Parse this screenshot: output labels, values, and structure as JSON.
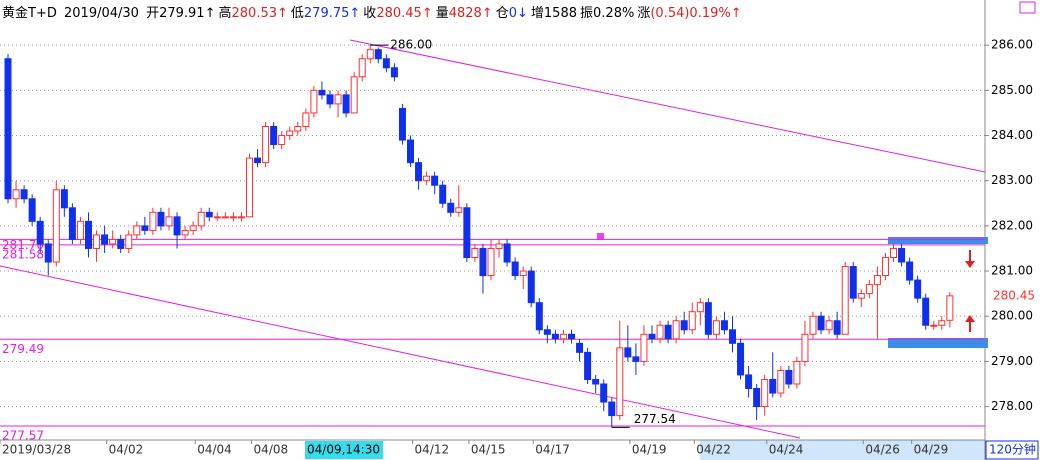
{
  "header": {
    "symbol": "黄金T+D",
    "date": "2019/04/30",
    "fields": [
      {
        "label": "开",
        "value": "279.91↑",
        "color": "#000000"
      },
      {
        "label": "高",
        "value": "280.53↑",
        "color": "#e02020"
      },
      {
        "label": "低",
        "value": "279.75↑",
        "color": "#1030e0"
      },
      {
        "label": "收",
        "value": "280.45↑",
        "color": "#e02020"
      },
      {
        "label": "量",
        "value": "4828↑",
        "color": "#e02020"
      },
      {
        "label": "仓",
        "value": "0↓",
        "color": "#1030e0"
      },
      {
        "label": "增",
        "value": "1588",
        "color": "#000000"
      },
      {
        "label": "振",
        "value": "0.28%",
        "color": "#000000"
      },
      {
        "label": "涨",
        "value": "(0.54)0.19%↑",
        "color": "#e02020"
      }
    ]
  },
  "period_label": "120分钟",
  "cursor_label": "04/09,14:30",
  "chart_data": {
    "type": "candlestick",
    "up_color": "#ff3030",
    "down_color": "#1030f0",
    "ylim": [
      277.26,
      287.0
    ],
    "yticks": [
      {
        "value": 278,
        "label": "278.00"
      },
      {
        "value": 279,
        "label": "279.00"
      },
      {
        "value": 280,
        "label": "280.00"
      },
      {
        "value": 281,
        "label": "281.00"
      },
      {
        "value": 282,
        "label": "282.00"
      },
      {
        "value": 283,
        "label": "283.00"
      },
      {
        "value": 284,
        "label": "284.00"
      },
      {
        "value": 285,
        "label": "285.00"
      },
      {
        "value": 286,
        "label": "286.00"
      }
    ],
    "grid": true,
    "levels": [
      {
        "value": 281.7,
        "label": "281.70"
      },
      281.58,
      279.49,
      277.57
    ],
    "level_color": "#e020e0",
    "max_label": {
      "value": 286,
      "label": "286.00"
    },
    "min_label": 277.54,
    "last_price": 280.45,
    "categories": [
      "2019/03/28",
      null,
      null,
      null,
      null,
      null,
      null,
      null,
      null,
      null,
      null,
      null,
      null,
      "04/02",
      null,
      null,
      null,
      null,
      null,
      null,
      null,
      null,
      null,
      null,
      "04/04",
      null,
      null,
      null,
      null,
      null,
      null,
      "04/08",
      null,
      null,
      null,
      null,
      null,
      null,
      null,
      null,
      null,
      null,
      null,
      null,
      null,
      null,
      null,
      null,
      null,
      null,
      null,
      "04/12",
      null,
      null,
      null,
      null,
      null,
      null,
      "04/15",
      null,
      null,
      null,
      null,
      null,
      null,
      null,
      "04/17",
      null,
      null,
      null,
      null,
      null,
      null,
      null,
      null,
      null,
      null,
      null,
      "04/19",
      null,
      null,
      null,
      null,
      null,
      null,
      null,
      "04/22",
      null,
      null,
      null,
      null,
      null,
      null,
      null,
      null,
      "04/24",
      null,
      null,
      null,
      null,
      null,
      null,
      null,
      null,
      null,
      null,
      null,
      "04/26",
      null,
      null,
      null,
      null,
      null,
      "04/29",
      null,
      null,
      null,
      null
    ],
    "candles": [
      [
        285.7,
        285.8,
        282.5,
        282.6
      ],
      [
        282.6,
        283.0,
        282.4,
        282.8
      ],
      [
        282.8,
        282.9,
        282.5,
        282.6
      ],
      [
        282.6,
        282.7,
        282.0,
        282.1
      ],
      [
        282.1,
        282.2,
        281.4,
        281.6
      ],
      [
        281.6,
        281.7,
        280.9,
        281.2
      ],
      [
        281.2,
        283.0,
        281.1,
        282.8
      ],
      [
        282.8,
        282.9,
        282.2,
        282.4
      ],
      [
        282.4,
        282.5,
        281.6,
        281.7
      ],
      [
        281.7,
        282.2,
        281.6,
        282.1
      ],
      [
        282.1,
        282.3,
        281.3,
        281.5
      ],
      [
        281.5,
        281.9,
        281.2,
        281.8
      ],
      [
        281.8,
        282.0,
        281.4,
        281.6
      ],
      [
        281.6,
        281.9,
        281.5,
        281.7
      ],
      [
        281.7,
        281.8,
        281.4,
        281.5
      ],
      [
        281.5,
        281.9,
        281.4,
        281.8
      ],
      [
        281.8,
        282.1,
        281.7,
        282.0
      ],
      [
        282.0,
        282.2,
        281.8,
        281.9
      ],
      [
        281.9,
        282.4,
        281.8,
        282.3
      ],
      [
        282.3,
        282.4,
        281.9,
        282.0
      ],
      [
        282.0,
        282.4,
        281.9,
        282.2
      ],
      [
        282.2,
        282.3,
        281.5,
        281.8
      ],
      [
        281.8,
        282.0,
        281.7,
        281.9
      ],
      [
        281.9,
        282.1,
        281.8,
        282.0
      ],
      [
        282.0,
        282.4,
        281.9,
        282.3
      ],
      [
        282.3,
        282.4,
        282.1,
        282.2
      ],
      [
        282.2,
        282.3,
        282.1,
        282.2
      ],
      [
        282.2,
        282.3,
        282.2,
        282.2
      ],
      [
        282.2,
        282.3,
        282.1,
        282.2
      ],
      [
        282.2,
        282.3,
        282.1,
        282.2
      ],
      [
        282.2,
        283.6,
        282.2,
        283.5
      ],
      [
        283.5,
        283.7,
        283.3,
        283.4
      ],
      [
        283.4,
        284.3,
        283.3,
        284.2
      ],
      [
        284.2,
        284.3,
        283.7,
        283.8
      ],
      [
        283.8,
        284.1,
        283.7,
        284.0
      ],
      [
        284.0,
        284.2,
        283.9,
        284.1
      ],
      [
        284.1,
        284.3,
        284.0,
        284.2
      ],
      [
        284.2,
        284.6,
        284.1,
        284.5
      ],
      [
        284.5,
        285.1,
        284.4,
        285.0
      ],
      [
        285.0,
        285.2,
        284.8,
        284.9
      ],
      [
        284.9,
        285.0,
        284.6,
        284.7
      ],
      [
        284.7,
        285.0,
        284.4,
        284.9
      ],
      [
        284.9,
        285.0,
        284.4,
        284.5
      ],
      [
        284.5,
        285.4,
        284.5,
        285.3
      ],
      [
        285.3,
        285.8,
        285.2,
        285.7
      ],
      [
        285.7,
        286.0,
        285.6,
        285.9
      ],
      [
        285.9,
        285.95,
        285.6,
        285.7
      ],
      [
        285.7,
        285.8,
        285.4,
        285.5
      ],
      [
        285.5,
        285.6,
        285.2,
        285.3
      ],
      [
        284.6,
        284.7,
        283.8,
        283.9
      ],
      [
        283.9,
        284.0,
        283.3,
        283.4
      ],
      [
        283.4,
        283.5,
        282.8,
        283.0
      ],
      [
        283.0,
        283.2,
        282.9,
        283.1
      ],
      [
        283.1,
        283.2,
        282.7,
        282.9
      ],
      [
        282.9,
        283.0,
        282.4,
        282.5
      ],
      [
        282.5,
        282.6,
        282.2,
        282.3
      ],
      [
        282.3,
        282.9,
        282.2,
        282.4
      ],
      [
        282.4,
        282.5,
        281.2,
        281.3
      ],
      [
        281.3,
        281.6,
        281.2,
        281.5
      ],
      [
        281.5,
        281.6,
        280.5,
        280.9
      ],
      [
        280.9,
        281.7,
        280.8,
        281.5
      ],
      [
        281.5,
        281.7,
        281.3,
        281.6
      ],
      [
        281.6,
        281.7,
        281.1,
        281.2
      ],
      [
        281.2,
        281.3,
        280.8,
        280.9
      ],
      [
        280.9,
        281.1,
        280.6,
        281.0
      ],
      [
        281.0,
        281.1,
        280.2,
        280.3
      ],
      [
        280.3,
        280.4,
        279.6,
        279.7
      ],
      [
        279.7,
        279.8,
        279.4,
        279.6
      ],
      [
        279.6,
        279.7,
        279.4,
        279.5
      ],
      [
        279.5,
        279.7,
        279.4,
        279.6
      ],
      [
        279.6,
        279.7,
        279.4,
        279.5
      ],
      [
        279.4,
        279.5,
        279.0,
        279.2
      ],
      [
        279.2,
        279.3,
        278.5,
        278.6
      ],
      [
        278.6,
        278.7,
        278.3,
        278.5
      ],
      [
        278.5,
        278.6,
        277.9,
        278.1
      ],
      [
        278.1,
        278.2,
        277.54,
        277.8
      ],
      [
        277.8,
        279.9,
        277.7,
        279.3
      ],
      [
        279.3,
        279.8,
        279.0,
        279.1
      ],
      [
        279.1,
        279.4,
        278.7,
        279.0
      ],
      [
        279.0,
        279.8,
        278.9,
        279.6
      ],
      [
        279.6,
        279.8,
        279.4,
        279.5
      ],
      [
        279.5,
        279.9,
        279.4,
        279.8
      ],
      [
        279.8,
        279.9,
        279.4,
        279.5
      ],
      [
        279.5,
        280.0,
        279.4,
        279.9
      ],
      [
        279.9,
        280.1,
        279.6,
        279.7
      ],
      [
        279.7,
        280.3,
        279.6,
        280.1
      ],
      [
        280.1,
        280.4,
        279.8,
        280.3
      ],
      [
        280.3,
        280.4,
        279.5,
        279.6
      ],
      [
        279.6,
        280.0,
        279.5,
        279.9
      ],
      [
        279.9,
        280.1,
        279.6,
        279.7
      ],
      [
        279.7,
        280.0,
        279.2,
        279.4
      ],
      [
        279.4,
        279.5,
        278.6,
        278.7
      ],
      [
        278.7,
        278.9,
        278.2,
        278.4
      ],
      [
        278.4,
        278.5,
        277.7,
        278.0
      ],
      [
        278.0,
        278.7,
        277.8,
        278.6
      ],
      [
        278.6,
        279.2,
        278.2,
        278.3
      ],
      [
        278.3,
        278.9,
        278.2,
        278.8
      ],
      [
        278.8,
        278.9,
        278.4,
        278.5
      ],
      [
        278.5,
        279.1,
        278.4,
        279.0
      ],
      [
        279.0,
        279.9,
        278.9,
        279.6
      ],
      [
        279.6,
        280.1,
        279.5,
        280.0
      ],
      [
        280.0,
        280.1,
        279.6,
        279.7
      ],
      [
        279.7,
        280.0,
        279.6,
        279.9
      ],
      [
        279.9,
        280.1,
        279.5,
        279.6
      ],
      [
        279.6,
        281.2,
        279.6,
        281.1
      ],
      [
        281.1,
        281.2,
        280.3,
        280.4
      ],
      [
        280.4,
        280.6,
        280.2,
        280.5
      ],
      [
        280.5,
        280.8,
        280.4,
        280.7
      ],
      [
        280.7,
        281.1,
        279.5,
        280.9
      ],
      [
        280.9,
        281.4,
        280.8,
        281.3
      ],
      [
        281.3,
        281.6,
        281.2,
        281.5
      ],
      [
        281.5,
        281.6,
        281.1,
        281.2
      ],
      [
        281.2,
        281.3,
        280.7,
        280.8
      ],
      [
        280.8,
        280.9,
        280.3,
        280.4
      ],
      [
        280.4,
        280.5,
        279.7,
        279.8
      ],
      [
        279.8,
        279.9,
        279.7,
        279.8
      ],
      [
        279.8,
        280.0,
        279.7,
        279.9
      ],
      [
        279.91,
        280.53,
        279.75,
        280.45
      ]
    ]
  }
}
